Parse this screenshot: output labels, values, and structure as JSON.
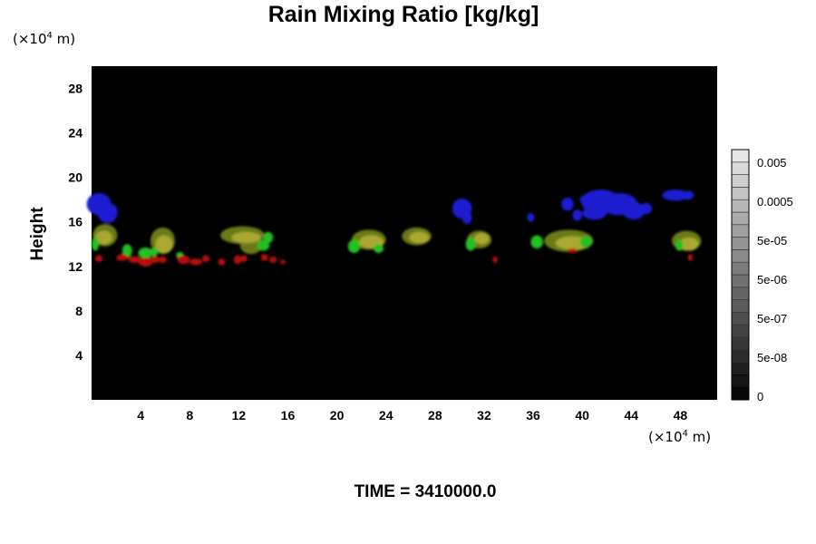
{
  "title": "Rain Mixing Ratio [kg/kg]",
  "y_unit": "(×10",
  "unit_exp": "4",
  "unit_m": " m)",
  "ylabel": "Height",
  "time_label": "TIME = 3410000.0",
  "chart_data": {
    "type": "heatmap",
    "title": "Rain Mixing Ratio [kg/kg]",
    "ylabel": "Height",
    "xlabel": "",
    "axis_unit": "(×10^4 m)",
    "xlim": [
      0,
      51
    ],
    "ylim": [
      0,
      30
    ],
    "x_ticks": [
      4,
      8,
      12,
      16,
      20,
      24,
      28,
      32,
      36,
      40,
      44,
      48
    ],
    "y_ticks": [
      4,
      8,
      12,
      16,
      20,
      24,
      28
    ],
    "background": "#000000",
    "colorbar": {
      "labels": [
        "0.005",
        "0.0005",
        "5e-05",
        "5e-06",
        "5e-07",
        "5e-08",
        "0"
      ],
      "levels": 20
    },
    "features": [
      {
        "color": "#1a1ad0",
        "points": [
          [
            0.6,
            17.6,
            1.0,
            1.0
          ],
          [
            1.3,
            16.8,
            0.8,
            0.9
          ],
          [
            1.6,
            17.0,
            0.5,
            0.6
          ],
          [
            30.2,
            17.2,
            0.8,
            0.9
          ],
          [
            30.6,
            16.4,
            0.4,
            0.6
          ],
          [
            35.8,
            16.4,
            0.3,
            0.4
          ],
          [
            38.8,
            17.6,
            0.5,
            0.6
          ],
          [
            39.6,
            16.6,
            0.4,
            0.5
          ],
          [
            40.2,
            18.0,
            0.4,
            0.4
          ],
          [
            41.5,
            17.8,
            1.6,
            1.1
          ],
          [
            43.0,
            17.6,
            1.5,
            1.0
          ],
          [
            44.2,
            17.0,
            0.9,
            0.8
          ],
          [
            41.0,
            16.8,
            1.0,
            0.6
          ],
          [
            45.2,
            17.2,
            0.5,
            0.5
          ],
          [
            47.6,
            18.4,
            1.1,
            0.5
          ],
          [
            48.6,
            18.4,
            0.5,
            0.4
          ]
        ]
      },
      {
        "color": "#6a7a18",
        "points": [
          [
            1.1,
            14.8,
            1.0,
            1.0
          ],
          [
            5.8,
            14.3,
            1.0,
            1.2
          ],
          [
            12.3,
            14.8,
            1.8,
            0.8
          ],
          [
            13.0,
            13.9,
            0.9,
            0.8
          ],
          [
            22.6,
            14.4,
            1.4,
            0.9
          ],
          [
            26.5,
            14.7,
            1.2,
            0.8
          ],
          [
            31.6,
            14.4,
            1.0,
            0.8
          ],
          [
            38.9,
            14.3,
            2.0,
            1.0
          ],
          [
            48.5,
            14.3,
            1.2,
            0.9
          ]
        ]
      },
      {
        "color": "#a8a830",
        "points": [
          [
            1.0,
            14.6,
            0.7,
            0.6
          ],
          [
            5.9,
            14.0,
            0.7,
            0.8
          ],
          [
            12.6,
            14.6,
            1.2,
            0.5
          ],
          [
            22.8,
            14.2,
            1.0,
            0.6
          ],
          [
            26.7,
            14.6,
            0.8,
            0.5
          ],
          [
            31.8,
            14.5,
            0.6,
            0.5
          ],
          [
            39.2,
            14.1,
            1.4,
            0.6
          ],
          [
            48.7,
            14.0,
            0.8,
            0.6
          ]
        ]
      },
      {
        "color": "#20c020",
        "points": [
          [
            0.3,
            14.0,
            0.3,
            0.6
          ],
          [
            2.9,
            13.4,
            0.4,
            0.6
          ],
          [
            4.4,
            13.2,
            0.6,
            0.5
          ],
          [
            5.1,
            13.3,
            0.3,
            0.4
          ],
          [
            7.2,
            13.0,
            0.3,
            0.3
          ],
          [
            14.0,
            13.9,
            0.5,
            0.5
          ],
          [
            14.4,
            14.6,
            0.4,
            0.5
          ],
          [
            21.4,
            13.8,
            0.5,
            0.6
          ],
          [
            23.4,
            13.6,
            0.4,
            0.4
          ],
          [
            30.9,
            14.0,
            0.4,
            0.6
          ],
          [
            36.3,
            14.2,
            0.5,
            0.6
          ],
          [
            40.3,
            14.2,
            0.5,
            0.5
          ],
          [
            47.9,
            13.9,
            0.3,
            0.5
          ]
        ]
      },
      {
        "color": "#b81010",
        "points": [
          [
            0.6,
            12.7,
            0.3,
            0.3
          ],
          [
            2.5,
            12.8,
            0.5,
            0.3
          ],
          [
            3.5,
            12.6,
            0.5,
            0.3
          ],
          [
            4.4,
            12.4,
            0.6,
            0.4
          ],
          [
            5.2,
            12.6,
            0.4,
            0.3
          ],
          [
            5.8,
            12.6,
            0.3,
            0.3
          ],
          [
            7.5,
            12.6,
            0.5,
            0.4
          ],
          [
            8.5,
            12.4,
            0.5,
            0.3
          ],
          [
            9.3,
            12.7,
            0.3,
            0.3
          ],
          [
            10.6,
            12.4,
            0.3,
            0.3
          ],
          [
            11.9,
            12.6,
            0.3,
            0.4
          ],
          [
            12.4,
            12.7,
            0.3,
            0.3
          ],
          [
            14.1,
            12.8,
            0.3,
            0.3
          ],
          [
            14.8,
            12.6,
            0.3,
            0.3
          ],
          [
            15.6,
            12.4,
            0.2,
            0.2
          ],
          [
            32.9,
            12.6,
            0.2,
            0.3
          ],
          [
            39.2,
            13.4,
            0.4,
            0.2
          ],
          [
            48.8,
            12.8,
            0.2,
            0.3
          ]
        ]
      }
    ]
  }
}
